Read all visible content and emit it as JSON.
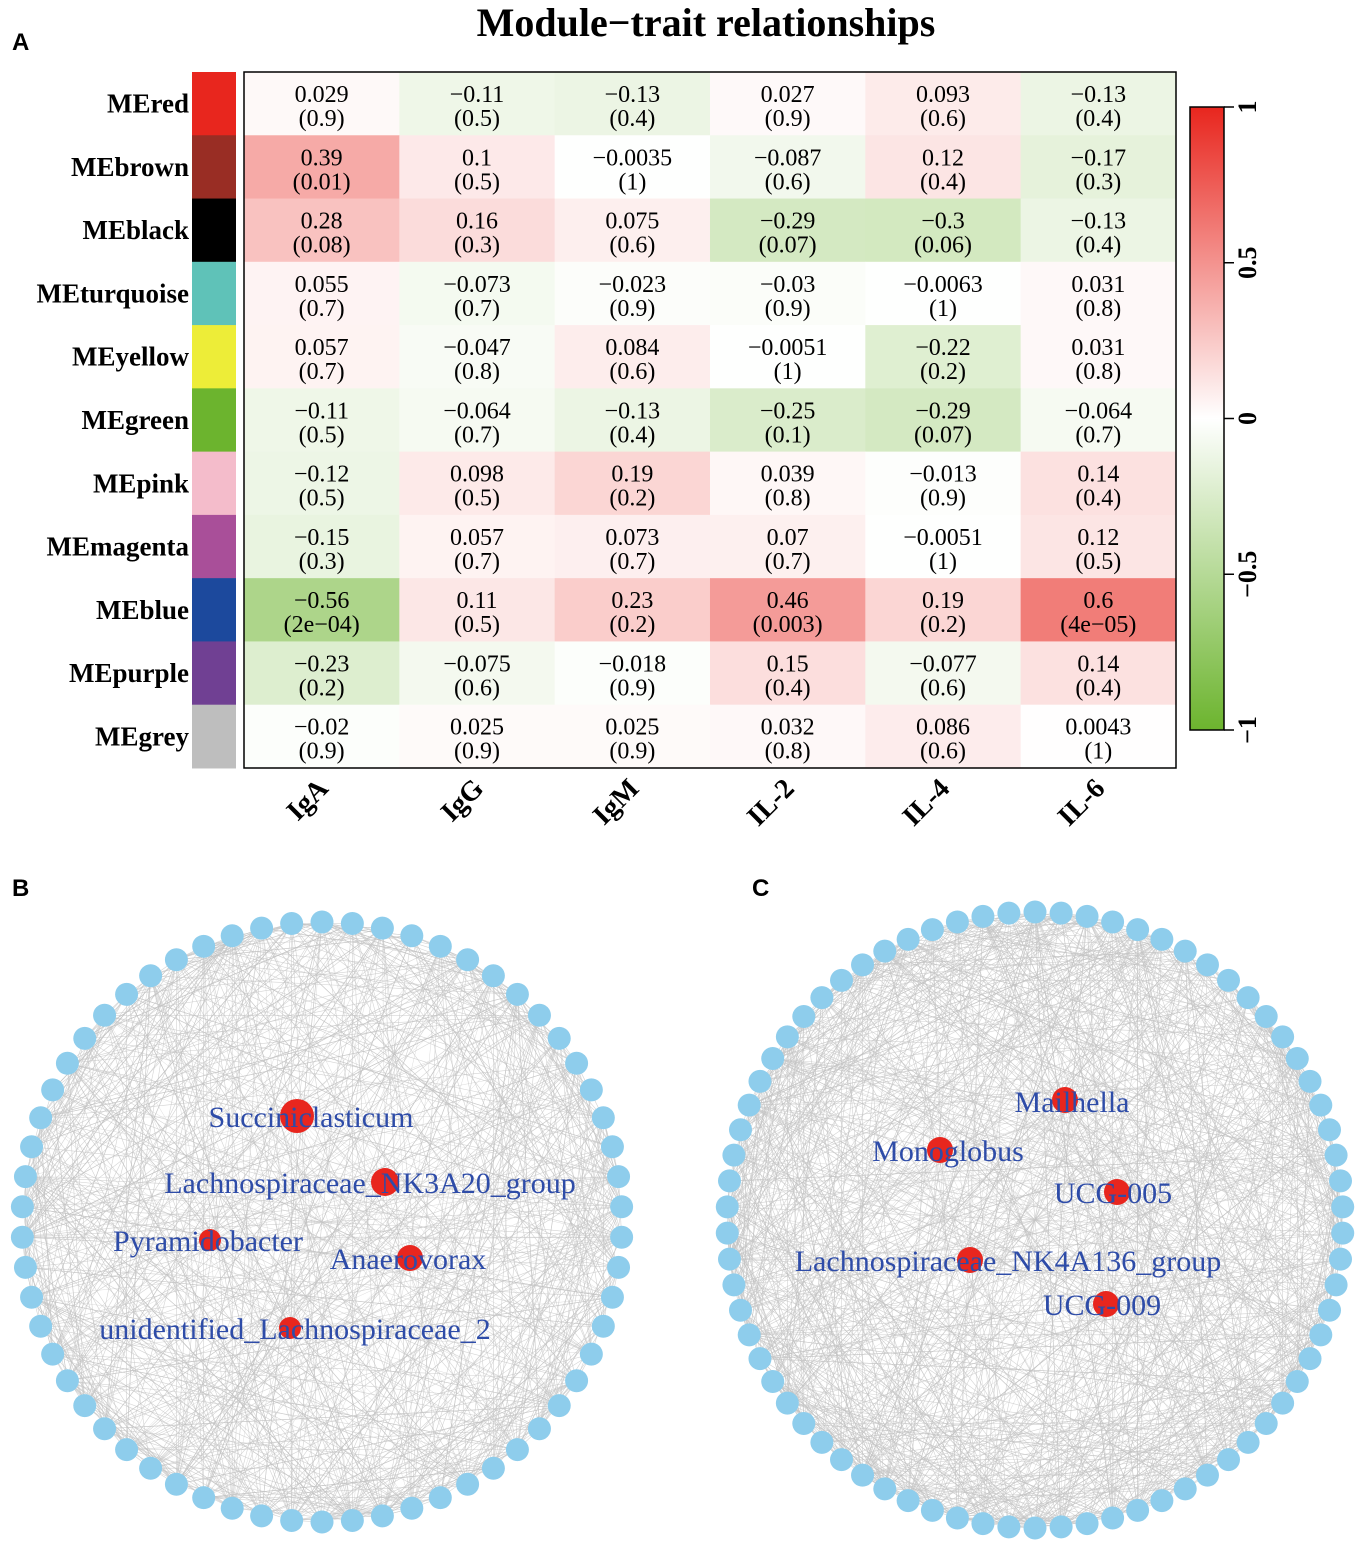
{
  "panels": {
    "a": "A",
    "b": "B",
    "c": "C"
  },
  "chart_data": [
    {
      "type": "heatmap",
      "title": "Module−trait relationships",
      "rows": [
        "MEred",
        "MEbrown",
        "MEblack",
        "MEturquoise",
        "MEyellow",
        "MEgreen",
        "MEpink",
        "MEmagenta",
        "MEblue",
        "MEpurple",
        "MEgrey"
      ],
      "row_colors": [
        "#e8261e",
        "#992d24",
        "#000000",
        "#5fc2b8",
        "#eded38",
        "#6cb42e",
        "#f4bccb",
        "#a94f99",
        "#1c499d",
        "#704093",
        "#bebebe"
      ],
      "columns": [
        "IgA",
        "IgG",
        "IgM",
        "IL-2",
        "IL-4",
        "IL-6"
      ],
      "values": [
        [
          0.029,
          -0.11,
          -0.13,
          0.027,
          0.093,
          -0.13
        ],
        [
          0.39,
          0.1,
          -0.0035,
          -0.087,
          0.12,
          -0.17
        ],
        [
          0.28,
          0.16,
          0.075,
          -0.29,
          -0.3,
          -0.13
        ],
        [
          0.055,
          -0.073,
          -0.023,
          -0.03,
          -0.0063,
          0.031
        ],
        [
          0.057,
          -0.047,
          0.084,
          -0.0051,
          -0.22,
          0.031
        ],
        [
          -0.11,
          -0.064,
          -0.13,
          -0.25,
          -0.29,
          -0.064
        ],
        [
          -0.12,
          0.098,
          0.19,
          0.039,
          -0.013,
          0.14
        ],
        [
          -0.15,
          0.057,
          0.073,
          0.07,
          -0.0051,
          0.12
        ],
        [
          -0.56,
          0.11,
          0.23,
          0.46,
          0.19,
          0.6
        ],
        [
          -0.23,
          -0.075,
          -0.018,
          0.15,
          -0.077,
          0.14
        ],
        [
          -0.02,
          0.025,
          0.025,
          0.032,
          0.086,
          0.0043
        ]
      ],
      "value_labels": [
        [
          "0.029",
          "−0.11",
          "−0.13",
          "0.027",
          "0.093",
          "−0.13"
        ],
        [
          "0.39",
          "0.1",
          "−0.0035",
          "−0.087",
          "0.12",
          "−0.17"
        ],
        [
          "0.28",
          "0.16",
          "0.075",
          "−0.29",
          "−0.3",
          "−0.13"
        ],
        [
          "0.055",
          "−0.073",
          "−0.023",
          "−0.03",
          "−0.0063",
          "0.031"
        ],
        [
          "0.057",
          "−0.047",
          "0.084",
          "−0.0051",
          "−0.22",
          "0.031"
        ],
        [
          "−0.11",
          "−0.064",
          "−0.13",
          "−0.25",
          "−0.29",
          "−0.064"
        ],
        [
          "−0.12",
          "0.098",
          "0.19",
          "0.039",
          "−0.013",
          "0.14"
        ],
        [
          "−0.15",
          "0.057",
          "0.073",
          "0.07",
          "−0.0051",
          "0.12"
        ],
        [
          "−0.56",
          "0.11",
          "0.23",
          "0.46",
          "0.19",
          "0.6"
        ],
        [
          "−0.23",
          "−0.075",
          "−0.018",
          "0.15",
          "−0.077",
          "0.14"
        ],
        [
          "−0.02",
          "0.025",
          "0.025",
          "0.032",
          "0.086",
          "0.0043"
        ]
      ],
      "p_values": [
        [
          "(0.9)",
          "(0.5)",
          "(0.4)",
          "(0.9)",
          "(0.6)",
          "(0.4)"
        ],
        [
          "(0.01)",
          "(0.5)",
          "(1)",
          "(0.6)",
          "(0.4)",
          "(0.3)"
        ],
        [
          "(0.08)",
          "(0.3)",
          "(0.6)",
          "(0.07)",
          "(0.06)",
          "(0.4)"
        ],
        [
          "(0.7)",
          "(0.7)",
          "(0.9)",
          "(0.9)",
          "(1)",
          "(0.8)"
        ],
        [
          "(0.7)",
          "(0.8)",
          "(0.6)",
          "(1)",
          "(0.2)",
          "(0.8)"
        ],
        [
          "(0.5)",
          "(0.7)",
          "(0.4)",
          "(0.1)",
          "(0.07)",
          "(0.7)"
        ],
        [
          "(0.5)",
          "(0.5)",
          "(0.2)",
          "(0.8)",
          "(0.9)",
          "(0.4)"
        ],
        [
          "(0.3)",
          "(0.7)",
          "(0.7)",
          "(0.7)",
          "(1)",
          "(0.5)"
        ],
        [
          "(2e−04)",
          "(0.5)",
          "(0.2)",
          "(0.003)",
          "(0.2)",
          "(4e−05)"
        ],
        [
          "(0.2)",
          "(0.6)",
          "(0.9)",
          "(0.4)",
          "(0.6)",
          "(0.4)"
        ],
        [
          "(0.9)",
          "(0.9)",
          "(0.9)",
          "(0.8)",
          "(0.6)",
          "(1)"
        ]
      ],
      "color_scale": {
        "range": [
          -1,
          1
        ],
        "ticks": [
          1,
          0.5,
          0,
          -0.5,
          -1
        ],
        "tick_labels": [
          "1",
          "0.5",
          "0",
          "−0.5",
          "−1"
        ],
        "low_color": "#6cb42e",
        "mid_color": "#ffffff",
        "high_color": "#e8261e"
      }
    },
    {
      "type": "network",
      "panel": "B",
      "outer_node_count": 62,
      "outer_node_color": "#8ecdec",
      "hub_node_color": "#e8261e",
      "label_color": "#2e4ca8",
      "hubs": [
        {
          "label": "Succiniclasticum",
          "size": 17
        },
        {
          "label": "Lachnospiraceae_NK3A20_group",
          "size": 14
        },
        {
          "label": "Pyramidobacter",
          "size": 11
        },
        {
          "label": "Anaerovorax",
          "size": 13
        },
        {
          "label": "unidentified_Lachnospiraceae_2",
          "size": 11
        }
      ]
    },
    {
      "type": "network",
      "panel": "C",
      "outer_node_count": 74,
      "outer_node_color": "#8ecdec",
      "hub_node_color": "#e8261e",
      "label_color": "#2e4ca8",
      "hubs": [
        {
          "label": "Mailhella",
          "size": 13
        },
        {
          "label": "Monoglobus",
          "size": 13
        },
        {
          "label": "UCG-005",
          "size": 13
        },
        {
          "label": "Lachnospiraceae_NK4A136_group",
          "size": 13
        },
        {
          "label": "UCG-009",
          "size": 13
        }
      ]
    }
  ]
}
